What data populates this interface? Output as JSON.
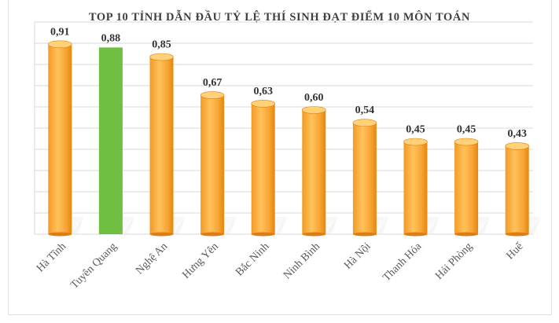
{
  "chart_data": {
    "type": "bar",
    "title": "TOP 10 TỈNH DẪN ĐẦU TỶ LỆ THÍ SINH ĐẠT ĐIỂM 10 MÔN TOÁN",
    "categories": [
      "Hà Tĩnh",
      "Tuyên Quang",
      "Nghệ An",
      "Hưng Yên",
      "Bắc Ninh",
      "Ninh Bình",
      "Hà Nội",
      "Thanh Hóa",
      "Hải Phòng",
      "Huế"
    ],
    "values": [
      0.91,
      0.88,
      0.85,
      0.67,
      0.63,
      0.6,
      0.54,
      0.45,
      0.45,
      0.43
    ],
    "value_labels": [
      "0,91",
      "0,88",
      "0,85",
      "0,67",
      "0,63",
      "0,60",
      "0,54",
      "0,45",
      "0,45",
      "0,43"
    ],
    "highlight_index": 1,
    "ylim": [
      0,
      1.0
    ],
    "grid": true,
    "legend": "none",
    "xlabel": "",
    "ylabel": "",
    "colors": {
      "bar": "#f5a030",
      "bar_light": "#ffd27a",
      "bar_dark": "#e07d10",
      "highlight": "#6fbf40",
      "highlight_dark": "#4f9a2a",
      "grid": "#d9d9d9",
      "shadow": "#e8e8e8"
    }
  }
}
